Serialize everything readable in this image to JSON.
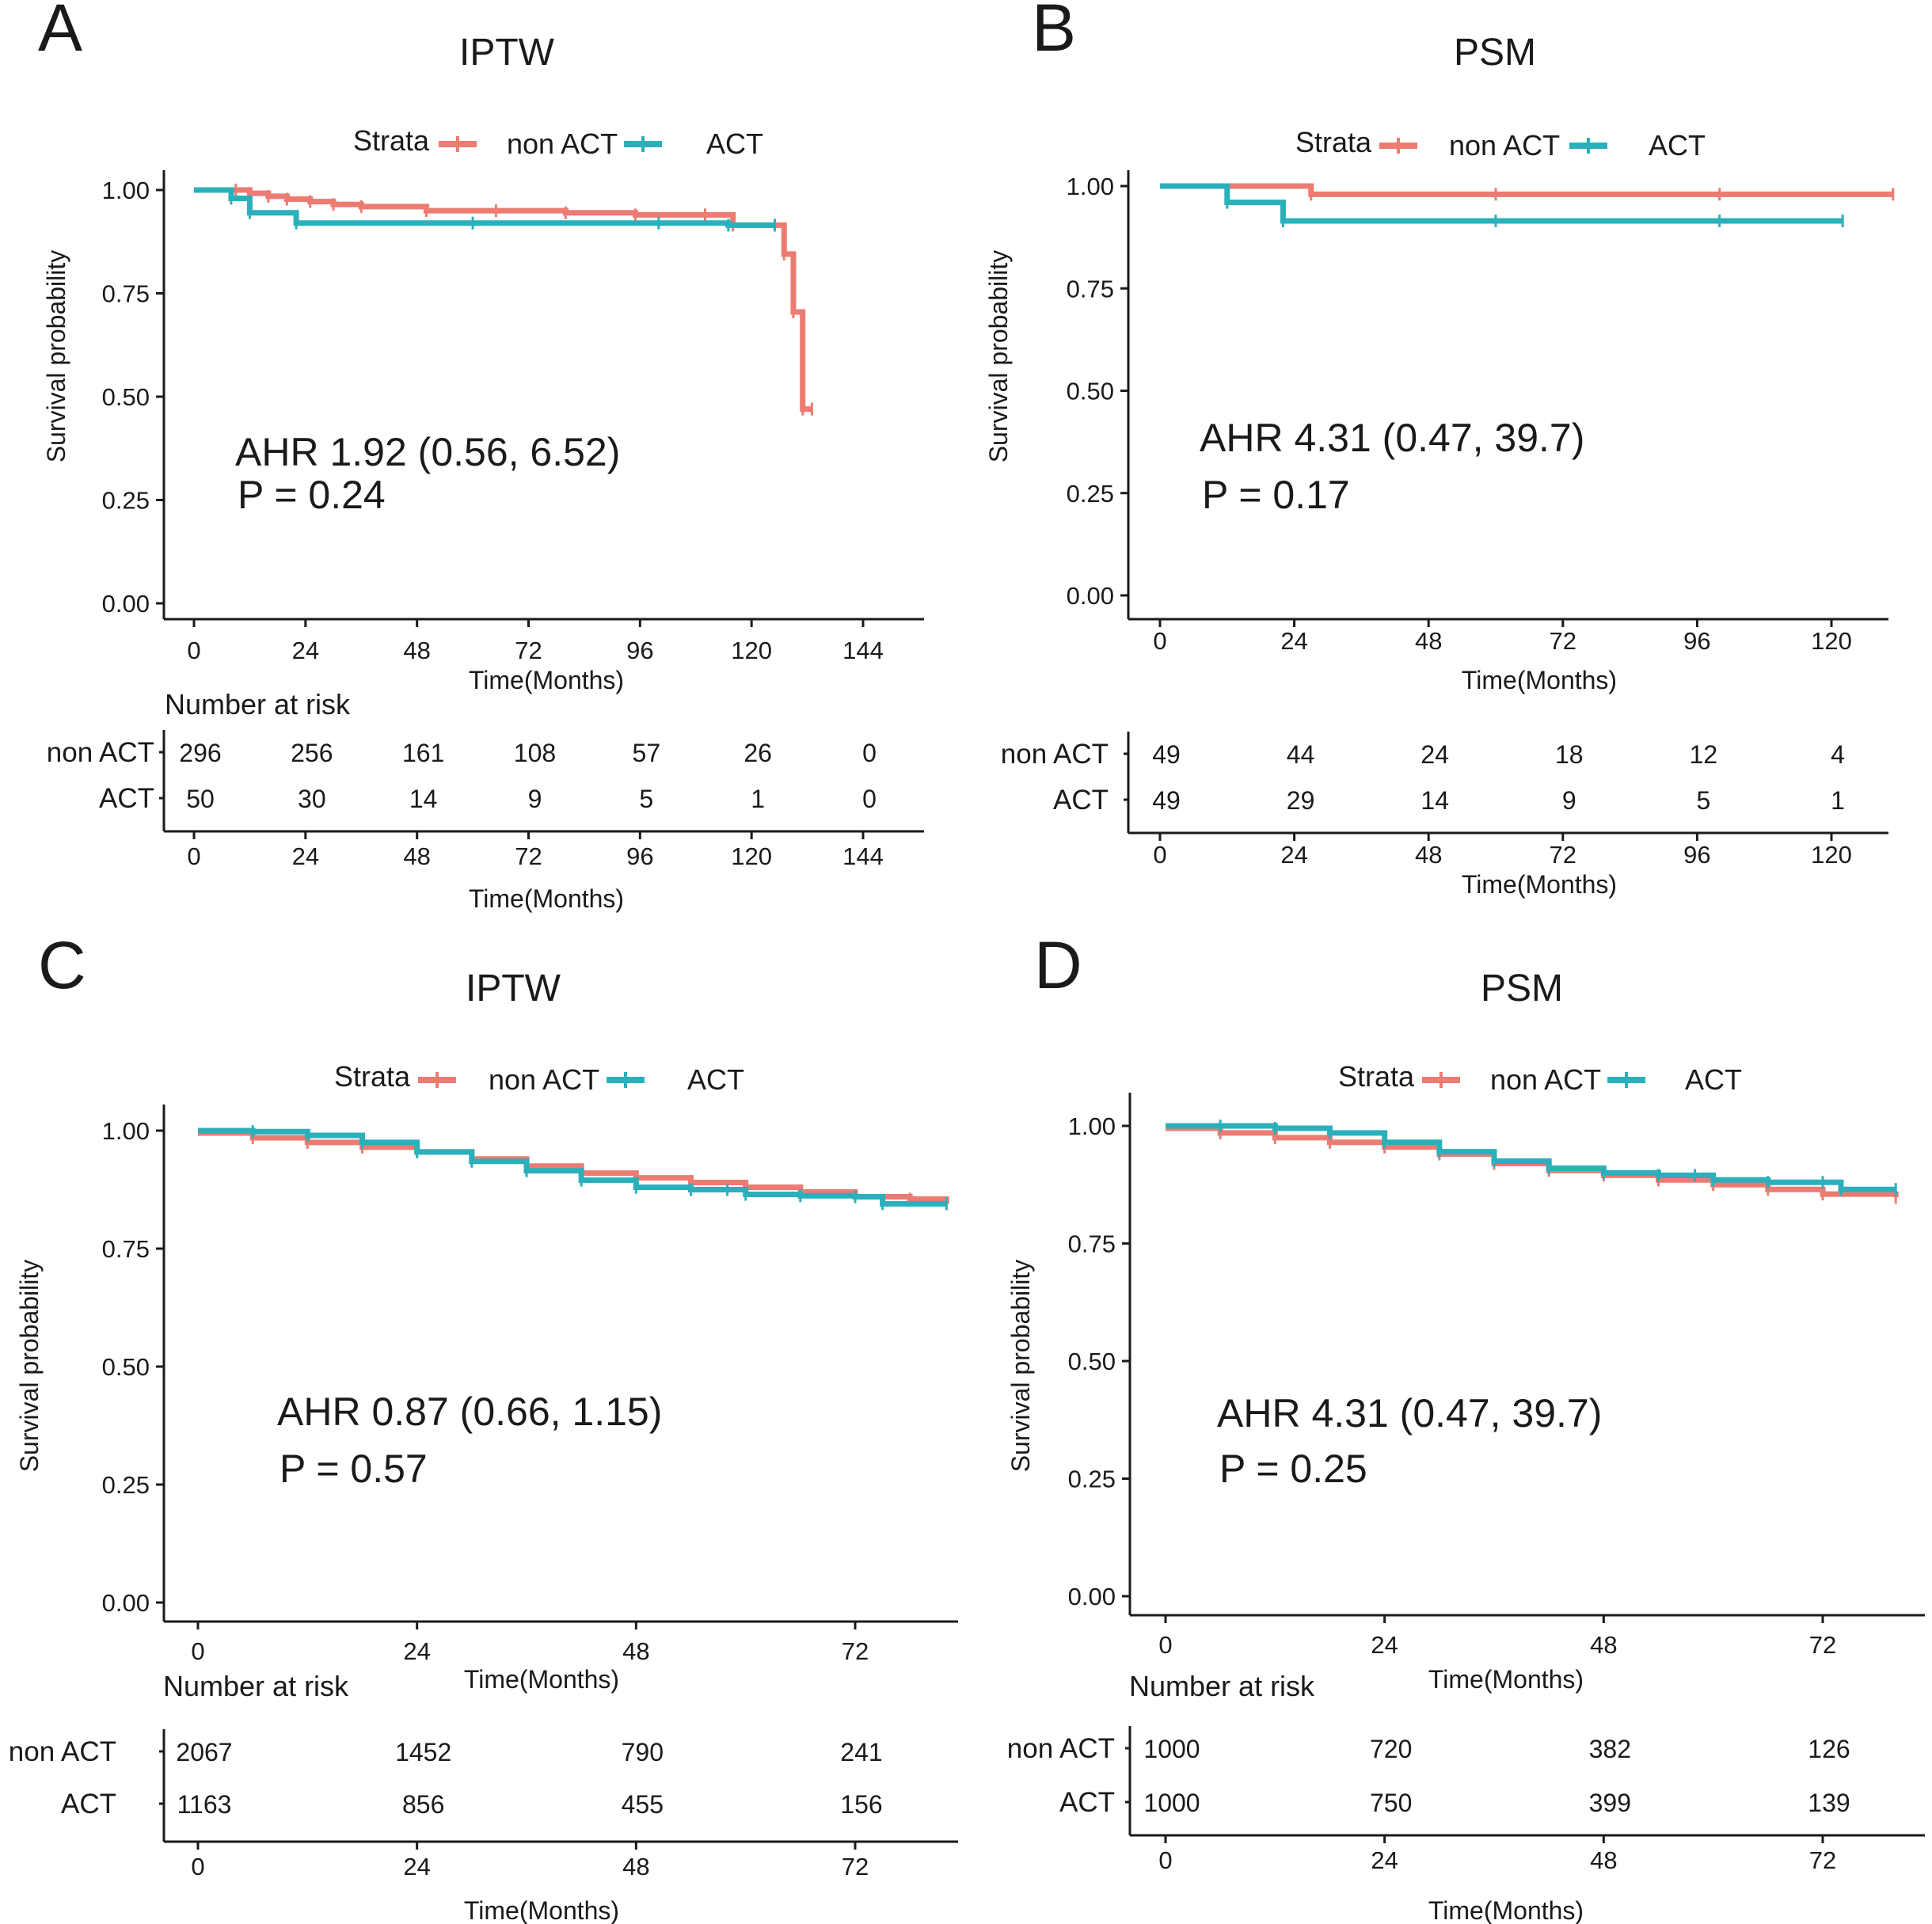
{
  "colors": {
    "non_act": "#EC7B72",
    "act": "#2BB0BB",
    "axis": "#1a1a1a"
  },
  "chart_data": [
    {
      "type": "line",
      "panel": "A",
      "title": "IPTW",
      "legend_title": "Strata",
      "legend": [
        "non ACT",
        "ACT"
      ],
      "xlabel": "Time(Months)",
      "ylabel": "Survival probability",
      "xlim": [
        -6,
        150
      ],
      "ylim": [
        0,
        1
      ],
      "xticks": [
        0,
        24,
        48,
        72,
        96,
        120,
        144
      ],
      "yticks": [
        0,
        0.25,
        0.5,
        0.75,
        1.0
      ],
      "ytick_labels": [
        "0.00",
        "0.25",
        "0.50",
        "0.75",
        "1.00"
      ],
      "annotation": [
        "AHR 1.92 (0.56, 6.52)",
        "P = 0.24"
      ],
      "series": [
        {
          "name": "non ACT",
          "color": "#EC7B72",
          "x": [
            0,
            9,
            12,
            16,
            20,
            25,
            30,
            36,
            50,
            65,
            80,
            95,
            110,
            116,
            125,
            127,
            129,
            131,
            133
          ],
          "y": [
            1.0,
            1.0,
            0.992,
            0.985,
            0.978,
            0.972,
            0.965,
            0.96,
            0.95,
            0.95,
            0.945,
            0.94,
            0.94,
            0.915,
            0.915,
            0.845,
            0.705,
            0.47,
            0.47
          ]
        },
        {
          "name": "ACT",
          "color": "#2BB0BB",
          "x": [
            0,
            8,
            12,
            22,
            60,
            100,
            115,
            125
          ],
          "y": [
            1.0,
            0.98,
            0.945,
            0.92,
            0.92,
            0.92,
            0.915,
            0.915
          ]
        }
      ],
      "risk_table": {
        "title": "Number at risk",
        "times": [
          0,
          24,
          48,
          72,
          96,
          120,
          144
        ],
        "rows": [
          {
            "name": "non ACT",
            "values": [
              "296",
              "256",
              "161",
              "108",
              "57",
              "26",
              "0"
            ]
          },
          {
            "name": "ACT",
            "values": [
              "50",
              "30",
              "14",
              "9",
              "5",
              "1",
              "0"
            ]
          }
        ],
        "xlabel": "Time(Months)"
      }
    },
    {
      "type": "line",
      "panel": "B",
      "title": "PSM",
      "legend_title": "Strata",
      "legend": [
        "non ACT",
        "ACT"
      ],
      "xlabel": "Time(Months)",
      "ylabel": "Survival probability",
      "xlim": [
        -6,
        131
      ],
      "ylim": [
        0,
        1
      ],
      "xticks": [
        0,
        24,
        48,
        72,
        96,
        120
      ],
      "yticks": [
        0,
        0.25,
        0.5,
        0.75,
        1.0
      ],
      "ytick_labels": [
        "0.00",
        "0.25",
        "0.50",
        "0.75",
        "1.00"
      ],
      "annotation": [
        "AHR 4.31 (0.47, 39.7)",
        "P = 0.17"
      ],
      "series": [
        {
          "name": "non ACT",
          "color": "#EC7B72",
          "x": [
            0,
            27,
            60,
            100,
            131
          ],
          "y": [
            1.0,
            0.98,
            0.98,
            0.98,
            0.98
          ]
        },
        {
          "name": "ACT",
          "color": "#2BB0BB",
          "x": [
            0,
            12,
            22,
            60,
            100,
            122
          ],
          "y": [
            1.0,
            0.96,
            0.915,
            0.915,
            0.915,
            0.915
          ]
        }
      ],
      "risk_table": {
        "title": "",
        "times": [
          0,
          24,
          48,
          72,
          96,
          120
        ],
        "rows": [
          {
            "name": "non ACT",
            "values": [
              "49",
              "44",
              "24",
              "18",
              "12",
              "4"
            ]
          },
          {
            "name": "ACT",
            "values": [
              "49",
              "29",
              "14",
              "9",
              "5",
              "1"
            ]
          }
        ],
        "xlabel": "Time(Months)"
      }
    },
    {
      "type": "line",
      "panel": "C",
      "title": "IPTW",
      "legend_title": "Strata",
      "legend": [
        "non ACT",
        "ACT"
      ],
      "xlabel": "Time(Months)",
      "ylabel": "Survival probability",
      "xlim": [
        -4,
        83
      ],
      "ylim": [
        0,
        1
      ],
      "xticks": [
        0,
        24,
        48,
        72
      ],
      "yticks": [
        0,
        0.25,
        0.5,
        0.75,
        1.0
      ],
      "ytick_labels": [
        "0.00",
        "0.25",
        "0.50",
        "0.75",
        "1.00"
      ],
      "annotation": [
        "AHR 0.87 (0.66, 1.15)",
        "P = 0.57"
      ],
      "series": [
        {
          "name": "non ACT",
          "color": "#EC7B72",
          "x": [
            0,
            6,
            12,
            18,
            24,
            30,
            36,
            42,
            48,
            54,
            60,
            66,
            72,
            78,
            82
          ],
          "y": [
            0.995,
            0.985,
            0.975,
            0.965,
            0.955,
            0.94,
            0.925,
            0.91,
            0.9,
            0.89,
            0.88,
            0.87,
            0.86,
            0.855,
            0.845
          ]
        },
        {
          "name": "ACT",
          "color": "#2BB0BB",
          "x": [
            0,
            6,
            12,
            18,
            24,
            30,
            36,
            42,
            48,
            54,
            58,
            60,
            66,
            72,
            75,
            82
          ],
          "y": [
            1.0,
            0.998,
            0.99,
            0.975,
            0.955,
            0.935,
            0.915,
            0.895,
            0.88,
            0.875,
            0.875,
            0.865,
            0.862,
            0.86,
            0.845,
            0.845
          ]
        }
      ],
      "risk_table": {
        "title": "Number at risk",
        "times": [
          0,
          24,
          48,
          72
        ],
        "rows": [
          {
            "name": "non ACT",
            "values": [
              "2067",
              "1452",
              "790",
              "241"
            ]
          },
          {
            "name": "ACT",
            "values": [
              "1163",
              "856",
              "455",
              "156"
            ]
          }
        ],
        "xlabel": "Time(Months)"
      }
    },
    {
      "type": "line",
      "panel": "D",
      "title": "PSM",
      "legend_title": "Strata",
      "legend": [
        "non ACT",
        "ACT"
      ],
      "xlabel": "Time(Months)",
      "ylabel": "Survival probability",
      "xlim": [
        -4,
        80
      ],
      "ylim": [
        0,
        1
      ],
      "xticks": [
        0,
        24,
        48,
        72
      ],
      "yticks": [
        0,
        0.25,
        0.5,
        0.75,
        1.0
      ],
      "ytick_labels": [
        "0.00",
        "0.25",
        "0.50",
        "0.75",
        "1.00"
      ],
      "annotation": [
        "AHR 4.31 (0.47, 39.7)",
        "P = 0.25"
      ],
      "series": [
        {
          "name": "non ACT",
          "color": "#EC7B72",
          "x": [
            0,
            6,
            12,
            18,
            24,
            30,
            36,
            42,
            48,
            54,
            60,
            66,
            72,
            80
          ],
          "y": [
            0.995,
            0.985,
            0.975,
            0.965,
            0.955,
            0.94,
            0.92,
            0.905,
            0.895,
            0.885,
            0.875,
            0.865,
            0.855,
            0.848
          ]
        },
        {
          "name": "ACT",
          "color": "#2BB0BB",
          "x": [
            0,
            6,
            12,
            18,
            24,
            30,
            36,
            42,
            48,
            54,
            58,
            60,
            66,
            72,
            74,
            80
          ],
          "y": [
            1.0,
            1.0,
            0.995,
            0.985,
            0.965,
            0.945,
            0.925,
            0.91,
            0.9,
            0.895,
            0.895,
            0.885,
            0.88,
            0.88,
            0.865,
            0.865
          ]
        }
      ],
      "risk_table": {
        "title": "Number at risk",
        "times": [
          0,
          24,
          48,
          72
        ],
        "rows": [
          {
            "name": "non ACT",
            "values": [
              "1000",
              "720",
              "382",
              "126"
            ]
          },
          {
            "name": "ACT",
            "values": [
              "1000",
              "750",
              "399",
              "139"
            ]
          }
        ],
        "xlabel": "Time(Months)"
      }
    }
  ]
}
